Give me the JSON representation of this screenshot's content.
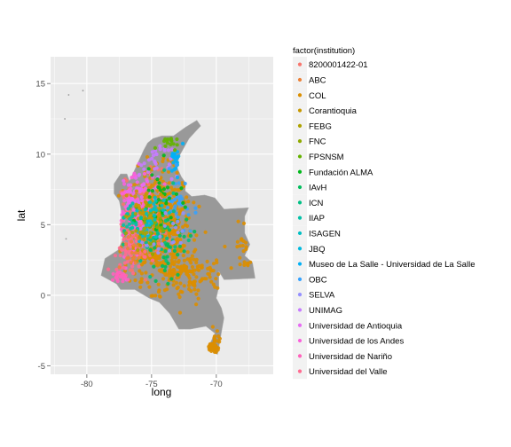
{
  "chart_data": {
    "type": "scatter",
    "xlabel": "long",
    "ylabel": "lat",
    "xlim": [
      -82.8,
      -65.6
    ],
    "ylim": [
      -5.6,
      16.9
    ],
    "x_ticks": [
      -80,
      -75,
      -70
    ],
    "y_ticks": [
      -5,
      0,
      5,
      10,
      15
    ],
    "x_tick_labels": [
      "-80",
      "-75",
      "-70"
    ],
    "y_tick_labels": [
      "-5",
      "0",
      "5",
      "10",
      "15"
    ],
    "grid": true,
    "background": "#ebebeb",
    "map_fill": "#999999",
    "legend": {
      "title": "factor(institution)",
      "position": "right",
      "entries": [
        {
          "label": "8200001422-01",
          "color": "#F8766D"
        },
        {
          "label": "ABC",
          "color": "#EC8239"
        },
        {
          "label": "COL",
          "color": "#DB8E00"
        },
        {
          "label": "Corantioquia",
          "color": "#C79800"
        },
        {
          "label": "FEBG",
          "color": "#AEA200"
        },
        {
          "label": "FNC",
          "color": "#8FAA00"
        },
        {
          "label": "FPSNSM",
          "color": "#64B200"
        },
        {
          "label": "Fundación ALMA",
          "color": "#00B81B"
        },
        {
          "label": "IAvH",
          "color": "#00BD5C"
        },
        {
          "label": "ICN",
          "color": "#00C085"
        },
        {
          "label": "IIAP",
          "color": "#00C1A7"
        },
        {
          "label": "ISAGEN",
          "color": "#00BFC4"
        },
        {
          "label": "JBQ",
          "color": "#00BADE"
        },
        {
          "label": "Museo de La Salle - Universidad de La Salle",
          "color": "#00B0F6"
        },
        {
          "label": "OBC",
          "color": "#35A2FF"
        },
        {
          "label": "SELVA",
          "color": "#9590FF"
        },
        {
          "label": "UNIMAG",
          "color": "#C77CFF"
        },
        {
          "label": "Universidad de Antioquia",
          "color": "#E76BF3"
        },
        {
          "label": "Universidad de los Andes",
          "color": "#FA62DB"
        },
        {
          "label": "Universidad de Nariño",
          "color": "#FF62BC"
        },
        {
          "label": "Universidad del Valle",
          "color": "#FF6C91"
        }
      ]
    },
    "map_outline": [
      [
        -77.9,
        7.9
      ],
      [
        -77.4,
        8.6
      ],
      [
        -76.9,
        8.6
      ],
      [
        -76.7,
        8.1
      ],
      [
        -76.1,
        9.3
      ],
      [
        -75.6,
        10.3
      ],
      [
        -75.3,
        10.8
      ],
      [
        -74.9,
        11.1
      ],
      [
        -74.2,
        11.3
      ],
      [
        -73.3,
        11.3
      ],
      [
        -72.4,
        11.9
      ],
      [
        -71.5,
        12.4
      ],
      [
        -71.2,
        12.0
      ],
      [
        -71.6,
        11.6
      ],
      [
        -72.1,
        11.1
      ],
      [
        -72.9,
        9.8
      ],
      [
        -73.0,
        9.0
      ],
      [
        -72.7,
        8.4
      ],
      [
        -72.4,
        8.0
      ],
      [
        -72.4,
        7.4
      ],
      [
        -71.9,
        7.0
      ],
      [
        -70.9,
        7.1
      ],
      [
        -70.1,
        6.9
      ],
      [
        -69.4,
        6.1
      ],
      [
        -67.5,
        6.2
      ],
      [
        -67.8,
        5.6
      ],
      [
        -67.8,
        4.4
      ],
      [
        -67.4,
        3.6
      ],
      [
        -67.8,
        2.8
      ],
      [
        -67.2,
        2.3
      ],
      [
        -67.0,
        1.2
      ],
      [
        -69.4,
        1.1
      ],
      [
        -69.8,
        1.7
      ],
      [
        -69.8,
        0.6
      ],
      [
        -70.0,
        -0.2
      ],
      [
        -69.6,
        -0.9
      ],
      [
        -69.4,
        -1.6
      ],
      [
        -69.9,
        -4.2
      ],
      [
        -70.3,
        -4.0
      ],
      [
        -70.7,
        -3.8
      ],
      [
        -70.1,
        -2.7
      ],
      [
        -70.8,
        -2.2
      ],
      [
        -72.0,
        -2.4
      ],
      [
        -72.9,
        -2.4
      ],
      [
        -73.6,
        -1.3
      ],
      [
        -74.4,
        -0.5
      ],
      [
        -75.2,
        -0.2
      ],
      [
        -76.3,
        0.4
      ],
      [
        -77.4,
        0.4
      ],
      [
        -77.7,
        0.8
      ],
      [
        -78.9,
        1.4
      ],
      [
        -78.6,
        2.6
      ],
      [
        -77.6,
        3.2
      ],
      [
        -77.2,
        4.0
      ],
      [
        -77.4,
        4.7
      ],
      [
        -77.3,
        5.8
      ],
      [
        -77.5,
        6.7
      ],
      [
        -77.9,
        7.2
      ]
    ],
    "point_clusters": [
      {
        "series": 2,
        "center": [
          -74.5,
          5.0
        ],
        "spread": [
          2.2,
          3.2
        ],
        "count": 520
      },
      {
        "series": 2,
        "center": [
          -72.5,
          1.5
        ],
        "spread": [
          2.6,
          1.6
        ],
        "count": 160
      },
      {
        "series": 2,
        "center": [
          -70.5,
          -3.5
        ],
        "spread": [
          0.6,
          0.9
        ],
        "count": 35
      },
      {
        "series": 2,
        "center": [
          -67.8,
          3.5
        ],
        "spread": [
          0.5,
          1.5
        ],
        "count": 20
      },
      {
        "series": 0,
        "center": [
          -76.0,
          5.5
        ],
        "spread": [
          1.8,
          2.8
        ],
        "count": 110
      },
      {
        "series": 18,
        "center": [
          -76.5,
          6.0
        ],
        "spread": [
          1.6,
          2.6
        ],
        "count": 90
      },
      {
        "series": 20,
        "center": [
          -76.8,
          3.5
        ],
        "spread": [
          1.2,
          1.6
        ],
        "count": 60
      },
      {
        "series": 17,
        "center": [
          -75.8,
          7.0
        ],
        "spread": [
          1.3,
          1.6
        ],
        "count": 55
      },
      {
        "series": 16,
        "center": [
          -74.5,
          9.5
        ],
        "spread": [
          1.2,
          1.3
        ],
        "count": 30
      },
      {
        "series": 13,
        "center": [
          -73.0,
          9.5
        ],
        "spread": [
          0.6,
          0.8
        ],
        "count": 20
      },
      {
        "series": 14,
        "center": [
          -72.8,
          6.8
        ],
        "spread": [
          1.2,
          1.5
        ],
        "count": 30
      },
      {
        "series": 9,
        "center": [
          -74.8,
          4.5
        ],
        "spread": [
          1.5,
          2.5
        ],
        "count": 60
      },
      {
        "series": 7,
        "center": [
          -74.3,
          6.5
        ],
        "spread": [
          1.4,
          2.2
        ],
        "count": 40
      },
      {
        "series": 8,
        "center": [
          -73.8,
          3.5
        ],
        "spread": [
          1.6,
          2.0
        ],
        "count": 40
      },
      {
        "series": 3,
        "center": [
          -75.3,
          6.3
        ],
        "spread": [
          0.9,
          1.0
        ],
        "count": 40
      },
      {
        "series": 5,
        "center": [
          -75.0,
          5.0
        ],
        "spread": [
          1.0,
          1.5
        ],
        "count": 25
      },
      {
        "series": 6,
        "center": [
          -73.8,
          10.8
        ],
        "spread": [
          0.6,
          0.4
        ],
        "count": 15
      },
      {
        "series": 11,
        "center": [
          -75.0,
          6.0
        ],
        "spread": [
          0.8,
          1.0
        ],
        "count": 20
      },
      {
        "series": 12,
        "center": [
          -75.5,
          4.5
        ],
        "spread": [
          0.5,
          0.6
        ],
        "count": 15
      },
      {
        "series": 19,
        "center": [
          -77.6,
          1.2
        ],
        "spread": [
          0.5,
          0.4
        ],
        "count": 20
      },
      {
        "series": 15,
        "center": [
          -74.0,
          4.0
        ],
        "spread": [
          1.2,
          1.5
        ],
        "count": 20
      },
      {
        "series": 10,
        "center": [
          -76.7,
          5.5
        ],
        "spread": [
          0.7,
          1.0
        ],
        "count": 20
      },
      {
        "series": 1,
        "center": [
          -76.5,
          3.0
        ],
        "spread": [
          1.0,
          1.2
        ],
        "count": 20
      },
      {
        "series": 4,
        "center": [
          -75.8,
          4.5
        ],
        "spread": [
          0.8,
          1.0
        ],
        "count": 15
      }
    ],
    "outlier_points": [
      {
        "series": 2,
        "x": -81.7,
        "y": 12.5
      },
      {
        "series": 2,
        "x": -81.4,
        "y": 14.2
      },
      {
        "series": 2,
        "x": -81.6,
        "y": 4.0
      },
      {
        "series": 2,
        "x": -80.3,
        "y": 14.5
      }
    ]
  }
}
